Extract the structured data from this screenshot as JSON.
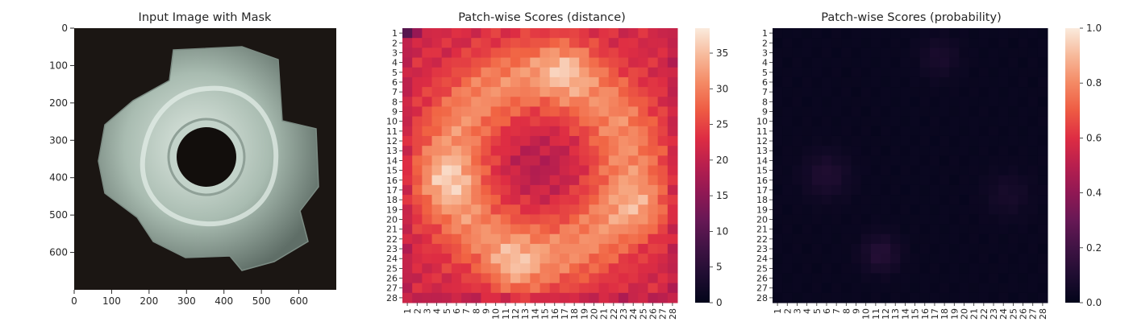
{
  "figure": {
    "panels": [
      {
        "title": "Input Image with Mask"
      },
      {
        "title": "Patch-wise Scores (distance)"
      },
      {
        "title": "Patch-wise Scores (probability)"
      }
    ]
  },
  "chart_data": [
    {
      "type": "image",
      "title": "Input Image with Mask",
      "xlim": [
        0,
        700
      ],
      "ylim": [
        700,
        0
      ],
      "xticks": [
        0,
        100,
        200,
        300,
        400,
        500,
        600
      ],
      "yticks": [
        0,
        100,
        200,
        300,
        400,
        500,
        600
      ],
      "content": "metal nut photo",
      "colors": {
        "background": "#1a1512",
        "metal_highlight": "#c9dcd0",
        "metal_shadow": "#6a7a72"
      }
    },
    {
      "type": "heatmap",
      "title": "Patch-wise Scores (distance)",
      "rows": 28,
      "cols": 28,
      "row_labels": [
        "1",
        "2",
        "3",
        "4",
        "5",
        "6",
        "7",
        "8",
        "9",
        "10",
        "11",
        "12",
        "13",
        "14",
        "15",
        "16",
        "17",
        "18",
        "19",
        "20",
        "21",
        "22",
        "23",
        "24",
        "25",
        "26",
        "27",
        "28"
      ],
      "col_labels": [
        "1",
        "2",
        "3",
        "4",
        "5",
        "6",
        "7",
        "8",
        "9",
        "10",
        "11",
        "12",
        "13",
        "14",
        "15",
        "16",
        "17",
        "18",
        "19",
        "20",
        "21",
        "22",
        "23",
        "24",
        "25",
        "26",
        "27",
        "28"
      ],
      "colorbar": {
        "min": 0,
        "max": 38.5,
        "ticks": [
          0,
          5,
          10,
          15,
          20,
          25,
          30,
          35
        ],
        "cmap": "rocket"
      },
      "pattern": "low values (~20-25) at outer border and centre, high values (~30-38) on a ring; hot spots near rows 4-5 cols 15-19, rows 15-17 cols 3-6, rows 18-20 cols 23-26, rows 24-26 cols 10-14"
    },
    {
      "type": "heatmap",
      "title": "Patch-wise Scores (probability)",
      "rows": 28,
      "cols": 28,
      "row_labels": [
        "1",
        "2",
        "3",
        "4",
        "5",
        "6",
        "7",
        "8",
        "9",
        "10",
        "11",
        "12",
        "13",
        "14",
        "15",
        "16",
        "17",
        "18",
        "19",
        "20",
        "21",
        "22",
        "23",
        "24",
        "25",
        "26",
        "27",
        "28"
      ],
      "col_labels": [
        "1",
        "2",
        "3",
        "4",
        "5",
        "6",
        "7",
        "8",
        "9",
        "10",
        "11",
        "12",
        "13",
        "14",
        "15",
        "16",
        "17",
        "18",
        "19",
        "20",
        "21",
        "22",
        "23",
        "24",
        "25",
        "26",
        "27",
        "28"
      ],
      "colorbar": {
        "min": 0.0,
        "max": 1.0,
        "ticks": [
          "0.0",
          "0.2",
          "0.4",
          "0.6",
          "0.8",
          "1.0"
        ],
        "cmap": "rocket"
      },
      "pattern": "almost all values near 0.0-0.05; faint spots ~0.05-0.15 near rows 3-4 cols 16-19, rows 14-17 cols 4-8, rows 16-19 cols 23-26, rows 23-25 cols 10-13"
    }
  ]
}
